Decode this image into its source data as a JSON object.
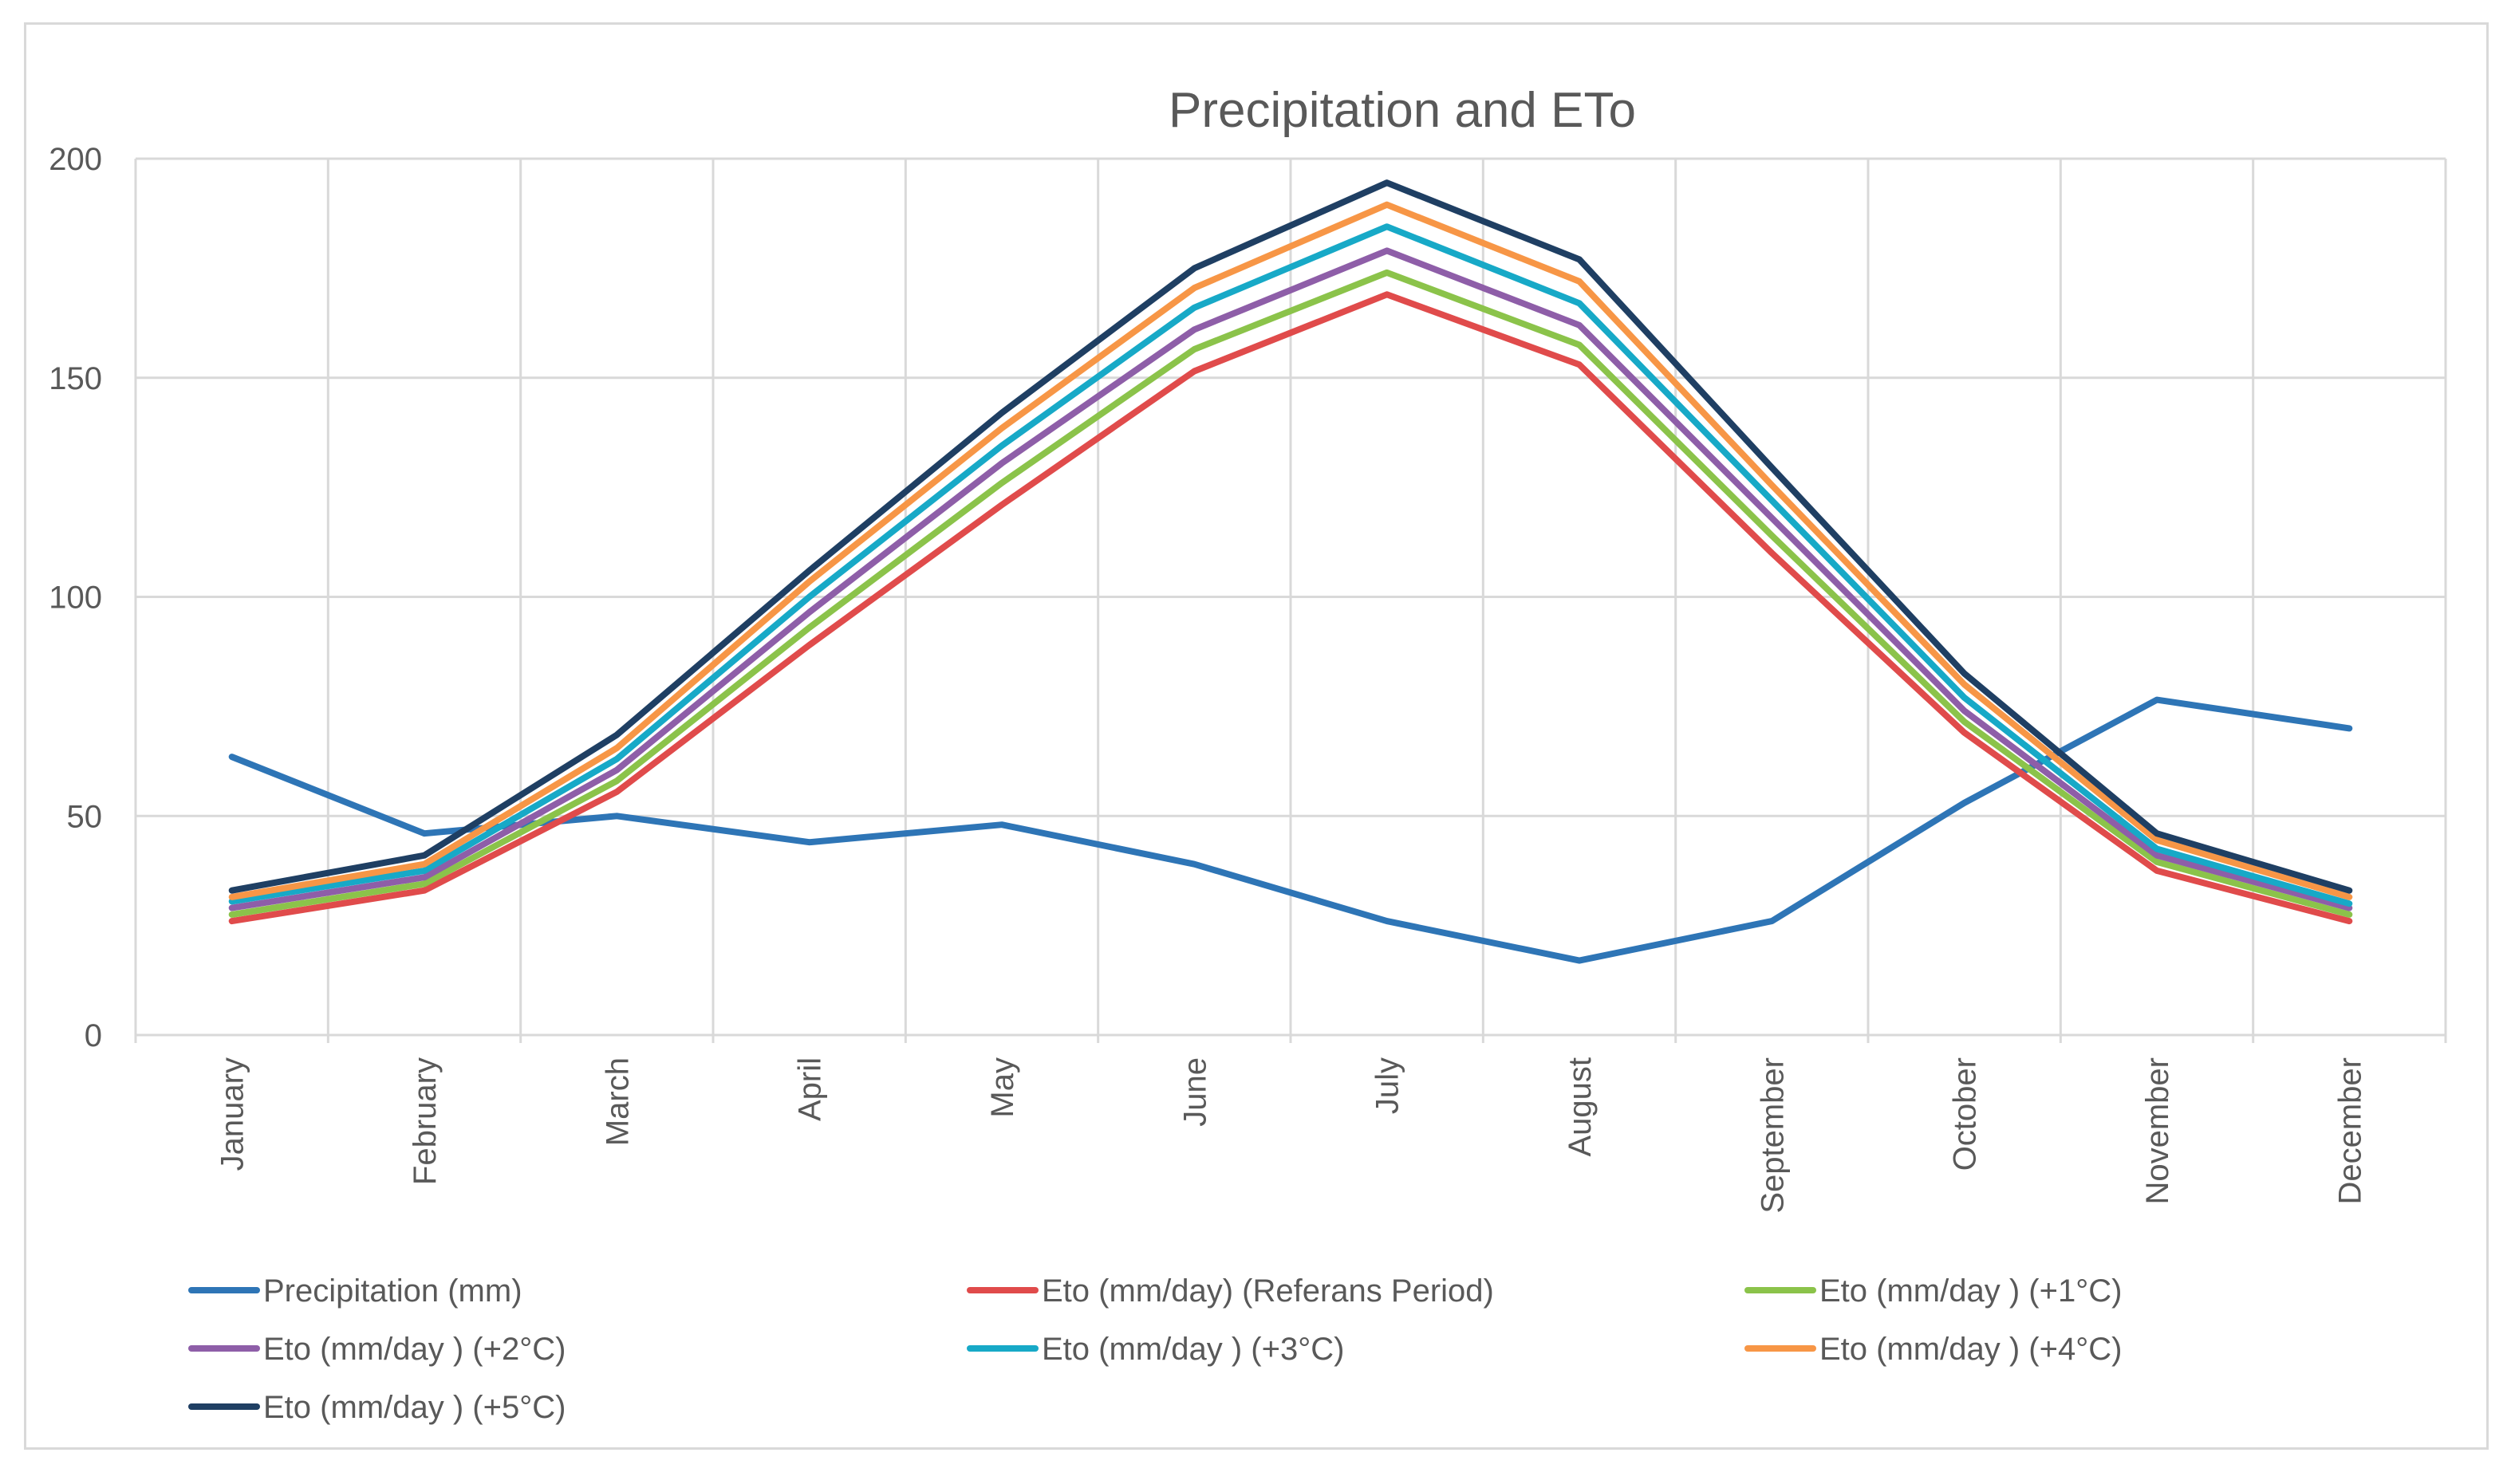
{
  "chart_data": {
    "type": "line",
    "title": "Precipitation and ETo",
    "xlabel": "",
    "ylabel": "",
    "ylim": [
      0,
      200
    ],
    "yticks": [
      0,
      50,
      100,
      150,
      200
    ],
    "grid": true,
    "legend_position": "bottom",
    "categories": [
      "January",
      "February",
      "March",
      "April",
      "May",
      "June",
      "July",
      "August",
      "September",
      "October",
      "November",
      "December"
    ],
    "series": [
      {
        "name": "Precipitation (mm)",
        "color": "#2e75b6",
        "values": [
          63.5,
          46,
          50,
          44,
          48,
          39,
          26,
          17,
          26,
          53,
          76.5,
          70
        ]
      },
      {
        "name": "Eto (mm/day) (Referans Period)",
        "color": "#e04b4b",
        "values": [
          26,
          33,
          55.5,
          89,
          121,
          151.5,
          169,
          153,
          110,
          69,
          37.5,
          26
        ]
      },
      {
        "name": "Eto (mm/day ) (+1°C)",
        "color": "#8bc34a",
        "values": [
          27.5,
          34.5,
          58,
          93,
          126,
          156.5,
          174,
          157.5,
          114,
          71.5,
          39.5,
          27.5
        ]
      },
      {
        "name": "Eto (mm/day ) (+2°C)",
        "color": "#8e5ea8",
        "values": [
          29,
          36,
          60.5,
          96.5,
          130.5,
          161,
          179,
          162,
          118,
          74,
          41,
          29
        ]
      },
      {
        "name": "Eto (mm/day ) (+3°C)",
        "color": "#17a9c7",
        "values": [
          30.5,
          37.5,
          63,
          100,
          134.5,
          166,
          184.5,
          167,
          122,
          77,
          42.5,
          30
        ]
      },
      {
        "name": "Eto (mm/day ) (+4°C)",
        "color": "#f79646",
        "values": [
          31.5,
          39,
          65.5,
          103.5,
          138.5,
          170.5,
          189.5,
          172,
          125.5,
          80,
          44.5,
          31.5
        ]
      },
      {
        "name": "Eto (mm/day ) (+5°C)",
        "color": "#1f3f63",
        "values": [
          33,
          41,
          68.5,
          106,
          142,
          175,
          194.5,
          177,
          129.5,
          82.5,
          46,
          33
        ]
      }
    ]
  }
}
